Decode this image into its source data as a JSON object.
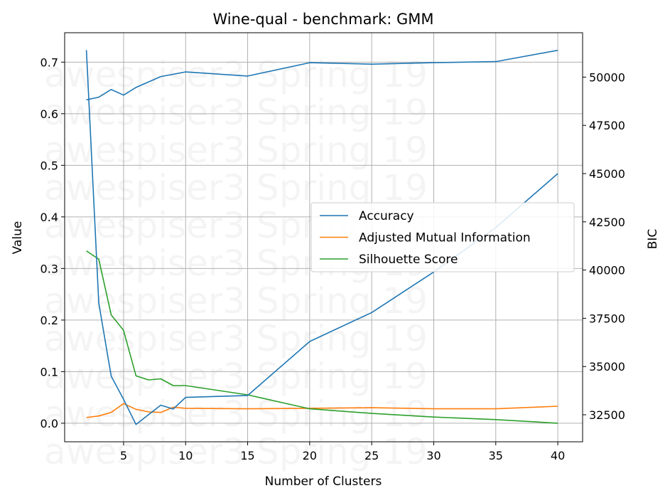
{
  "chart_data": {
    "type": "line",
    "title": "Wine-qual - benchmark: GMM",
    "xlabel": "Number of Clusters",
    "ylabel": "Value",
    "y2label": "BIC",
    "watermark": "awespiser3 Spring 19",
    "xlim": [
      0.25,
      42
    ],
    "ylim": [
      -0.036,
      0.757
    ],
    "y2lim": [
      31100,
      52300
    ],
    "xticks": [
      5,
      10,
      15,
      20,
      25,
      30,
      35,
      40
    ],
    "yticks": [
      0.0,
      0.1,
      0.2,
      0.3,
      0.4,
      0.5,
      0.6,
      0.7
    ],
    "y2ticks": [
      32500,
      35000,
      37500,
      40000,
      42500,
      45000,
      47500,
      50000
    ],
    "grid": true,
    "legend_position": "center-right",
    "series": [
      {
        "name": "Accuracy",
        "axis": "left",
        "color": "#1f77b4",
        "points": [
          [
            2,
            0.627
          ],
          [
            3,
            0.632
          ],
          [
            4,
            0.647
          ],
          [
            5,
            0.636
          ],
          [
            6,
            0.651
          ],
          [
            8,
            0.672
          ],
          [
            10,
            0.681
          ],
          [
            15,
            0.673
          ],
          [
            20,
            0.699
          ],
          [
            25,
            0.696
          ],
          [
            30,
            0.699
          ],
          [
            35,
            0.701
          ],
          [
            40,
            0.723
          ]
        ]
      },
      {
        "name": "Adjusted Mutual Information",
        "axis": "left",
        "color": "#ff7f0e",
        "points": [
          [
            2,
            0.011
          ],
          [
            3,
            0.014
          ],
          [
            4,
            0.021
          ],
          [
            5,
            0.038
          ],
          [
            6,
            0.027
          ],
          [
            7,
            0.022
          ],
          [
            8,
            0.021
          ],
          [
            9,
            0.031
          ],
          [
            10,
            0.029
          ],
          [
            15,
            0.028
          ],
          [
            20,
            0.029
          ],
          [
            25,
            0.03
          ],
          [
            30,
            0.028
          ],
          [
            35,
            0.028
          ],
          [
            40,
            0.033
          ]
        ]
      },
      {
        "name": "Silhouette Score",
        "axis": "left",
        "color": "#2ca02c",
        "points": [
          [
            2,
            0.334
          ],
          [
            3,
            0.318
          ],
          [
            4,
            0.21
          ],
          [
            5,
            0.18
          ],
          [
            6,
            0.092
          ],
          [
            7,
            0.084
          ],
          [
            8,
            0.086
          ],
          [
            9,
            0.073
          ],
          [
            10,
            0.073
          ],
          [
            15,
            0.055
          ],
          [
            20,
            0.028
          ],
          [
            25,
            0.019
          ],
          [
            30,
            0.012
          ],
          [
            35,
            0.007
          ],
          [
            40,
            0.0
          ]
        ]
      },
      {
        "axis": "right",
        "color": "#1f77b4",
        "points": [
          [
            2,
            51400
          ],
          [
            3,
            38300
          ],
          [
            4,
            34500
          ],
          [
            5,
            33300
          ],
          [
            6,
            32000
          ],
          [
            7,
            32500
          ],
          [
            8,
            33000
          ],
          [
            9,
            32800
          ],
          [
            10,
            33400
          ],
          [
            15,
            33500
          ],
          [
            20,
            36300
          ],
          [
            25,
            37800
          ],
          [
            30,
            39900
          ],
          [
            35,
            42200
          ],
          [
            40,
            45000
          ]
        ]
      }
    ]
  }
}
